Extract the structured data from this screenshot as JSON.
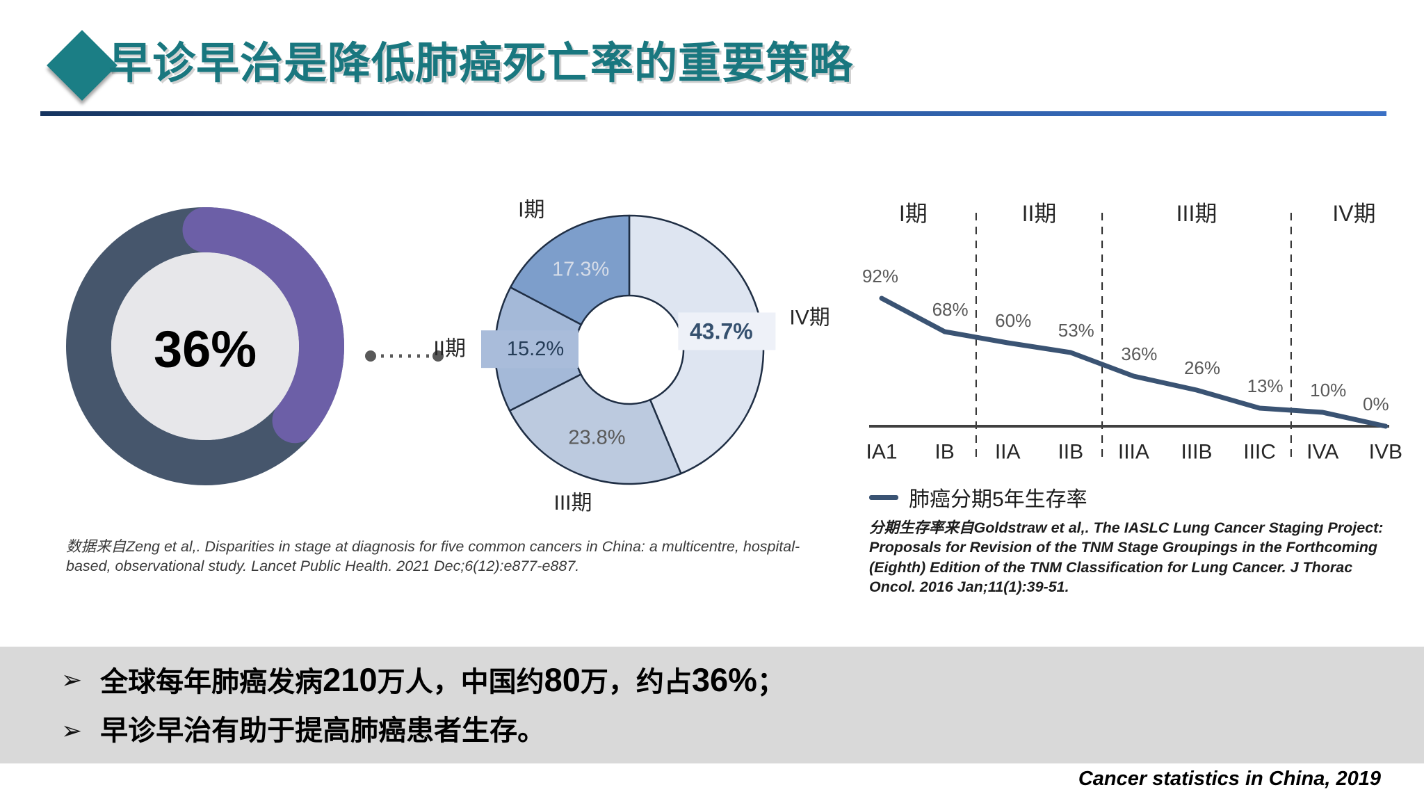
{
  "slide": {
    "title": "早诊早治是降低肺癌死亡率的重要策略",
    "accent_teal": "#1b7e85",
    "title_color": "#19777f"
  },
  "footer_source": "Cancer statistics in China, 2019",
  "citations": {
    "left": "数据来自Zeng et al,. Disparities in stage at diagnosis for five common cancers in China: a multicentre, hospital-based, observational study. Lancet Public Health. 2021 Dec;6(12):e877-e887.",
    "right": "分期生存率来自Goldstraw et al,. The IASLC Lung Cancer Staging Project: Proposals for Revision of the TNM Stage Groupings in the Forthcoming (Eighth) Edition of the TNM Classification for Lung Cancer. J Thorac Oncol. 2016 Jan;11(1):39-51."
  },
  "bullets": {
    "marker": "➢",
    "items": [
      {
        "segments": [
          {
            "t": "全球每年肺癌发病"
          },
          {
            "t": "210",
            "em": true
          },
          {
            "t": "万人，中国约"
          },
          {
            "t": "80",
            "em": true
          },
          {
            "t": "万，约占"
          },
          {
            "t": "36%",
            "em": true
          },
          {
            "t": "；"
          }
        ]
      },
      {
        "segments": [
          {
            "t": "早诊早治有助于提高肺癌患者生存。"
          }
        ]
      }
    ]
  },
  "chart_data": [
    {
      "type": "donut",
      "name": "china-share-donut",
      "title": "",
      "center_label": "36%",
      "value_pct": 36,
      "ring_color": "#46566c",
      "arc_color": "#6c5fa7",
      "hole_color": "#e7e7ea",
      "center_label_color": "#000000"
    },
    {
      "type": "donut",
      "name": "stage-distribution-donut",
      "title": "",
      "segments": [
        {
          "label": "IV期",
          "value": 43.7,
          "display": "43.7%",
          "color": "#dee5f1",
          "value_color": "#35506e",
          "callout": "#eef1f8"
        },
        {
          "label": "III期",
          "value": 23.8,
          "display": "23.8%",
          "color": "#bccadf",
          "value_color": "#595959",
          "callout": null
        },
        {
          "label": "II期",
          "value": 15.2,
          "display": "15.2%",
          "color": "#a4b9d8",
          "value_color": "#243c57",
          "callout": "#a9bcda"
        },
        {
          "label": "I期",
          "value": 17.3,
          "display": "17.3%",
          "color": "#7d9ecb",
          "value_color": "#d7dde8",
          "callout": null
        }
      ],
      "outline_color": "#1f2e44",
      "label_color": "#262626"
    },
    {
      "type": "line",
      "name": "survival-by-stage-line",
      "legend": "肺癌分期5年生存率",
      "categories": [
        "IA1",
        "IB",
        "IIA",
        "IIB",
        "IIIA",
        "IIIB",
        "IIIC",
        "IVA",
        "IVB"
      ],
      "values": [
        92,
        68,
        60,
        53,
        36,
        26,
        13,
        10,
        0
      ],
      "value_labels": [
        "92%",
        "68%",
        "60%",
        "53%",
        "36%",
        "26%",
        "13%",
        "10%",
        "0%"
      ],
      "stage_groups": [
        {
          "label": "I期",
          "from": 0,
          "to": 1
        },
        {
          "label": "II期",
          "from": 2,
          "to": 3
        },
        {
          "label": "III期",
          "from": 4,
          "to": 6
        },
        {
          "label": "IV期",
          "from": 7,
          "to": 8
        }
      ],
      "separators_after": [
        1,
        3,
        6
      ],
      "line_color": "#3a5373",
      "axis_color": "#404040",
      "value_label_color": "#595959",
      "tick_label_color": "#262626",
      "ylim": [
        0,
        100
      ],
      "grid": false,
      "legend_position": "bottom-left"
    }
  ]
}
